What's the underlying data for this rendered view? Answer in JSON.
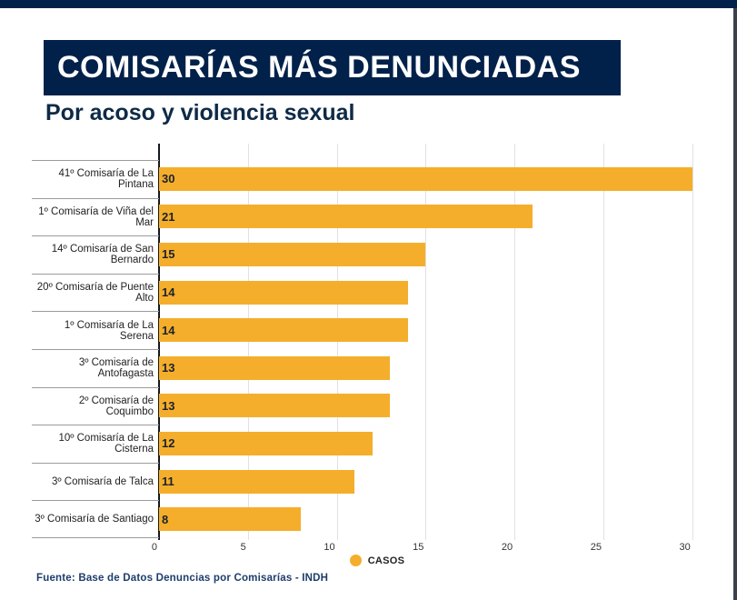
{
  "header": {
    "title": "COMISARÍAS MÁS DENUNCIADAS",
    "subtitle": "Por acoso y violencia sexual"
  },
  "chart_data": {
    "type": "bar",
    "orientation": "horizontal",
    "title": "COMISARÍAS MÁS DENUNCIADAS",
    "subtitle": "Por acoso y violencia sexual",
    "series_label": "CASOS",
    "categories": [
      "41º Comisaría de La Pintana",
      "1º Comisaría de Viña del Mar",
      "14º Comisaría de San Bernardo",
      "20º Comisaría de Puente Alto",
      "1º Comisaría de La Serena",
      "3º Comisaría de Antofagasta",
      "2º Comisaría de Coquimbo",
      "10º Comisaría de La Cisterna",
      "3º Comisaría de Talca",
      "3º Comisaría de Santiago"
    ],
    "values": [
      30,
      21,
      15,
      14,
      14,
      13,
      13,
      12,
      11,
      8
    ],
    "x_ticks": [
      0,
      5,
      10,
      15,
      20,
      25,
      30
    ],
    "xlim": [
      0,
      31.7
    ],
    "grid": "vertical",
    "legend_position": "bottom-center"
  },
  "legend": {
    "label": "CASOS"
  },
  "footer": {
    "source": "Fuente: Base de Datos Denuncias por Comisarías - INDH"
  },
  "colors": {
    "navy": "#01214a",
    "bar_orange": "#f5ae2b",
    "subtitle_navy": "#0e2a47",
    "footer_blue": "#1d3d6b",
    "gridline": "#e1e1e1",
    "separator": "#9b9b9b"
  }
}
